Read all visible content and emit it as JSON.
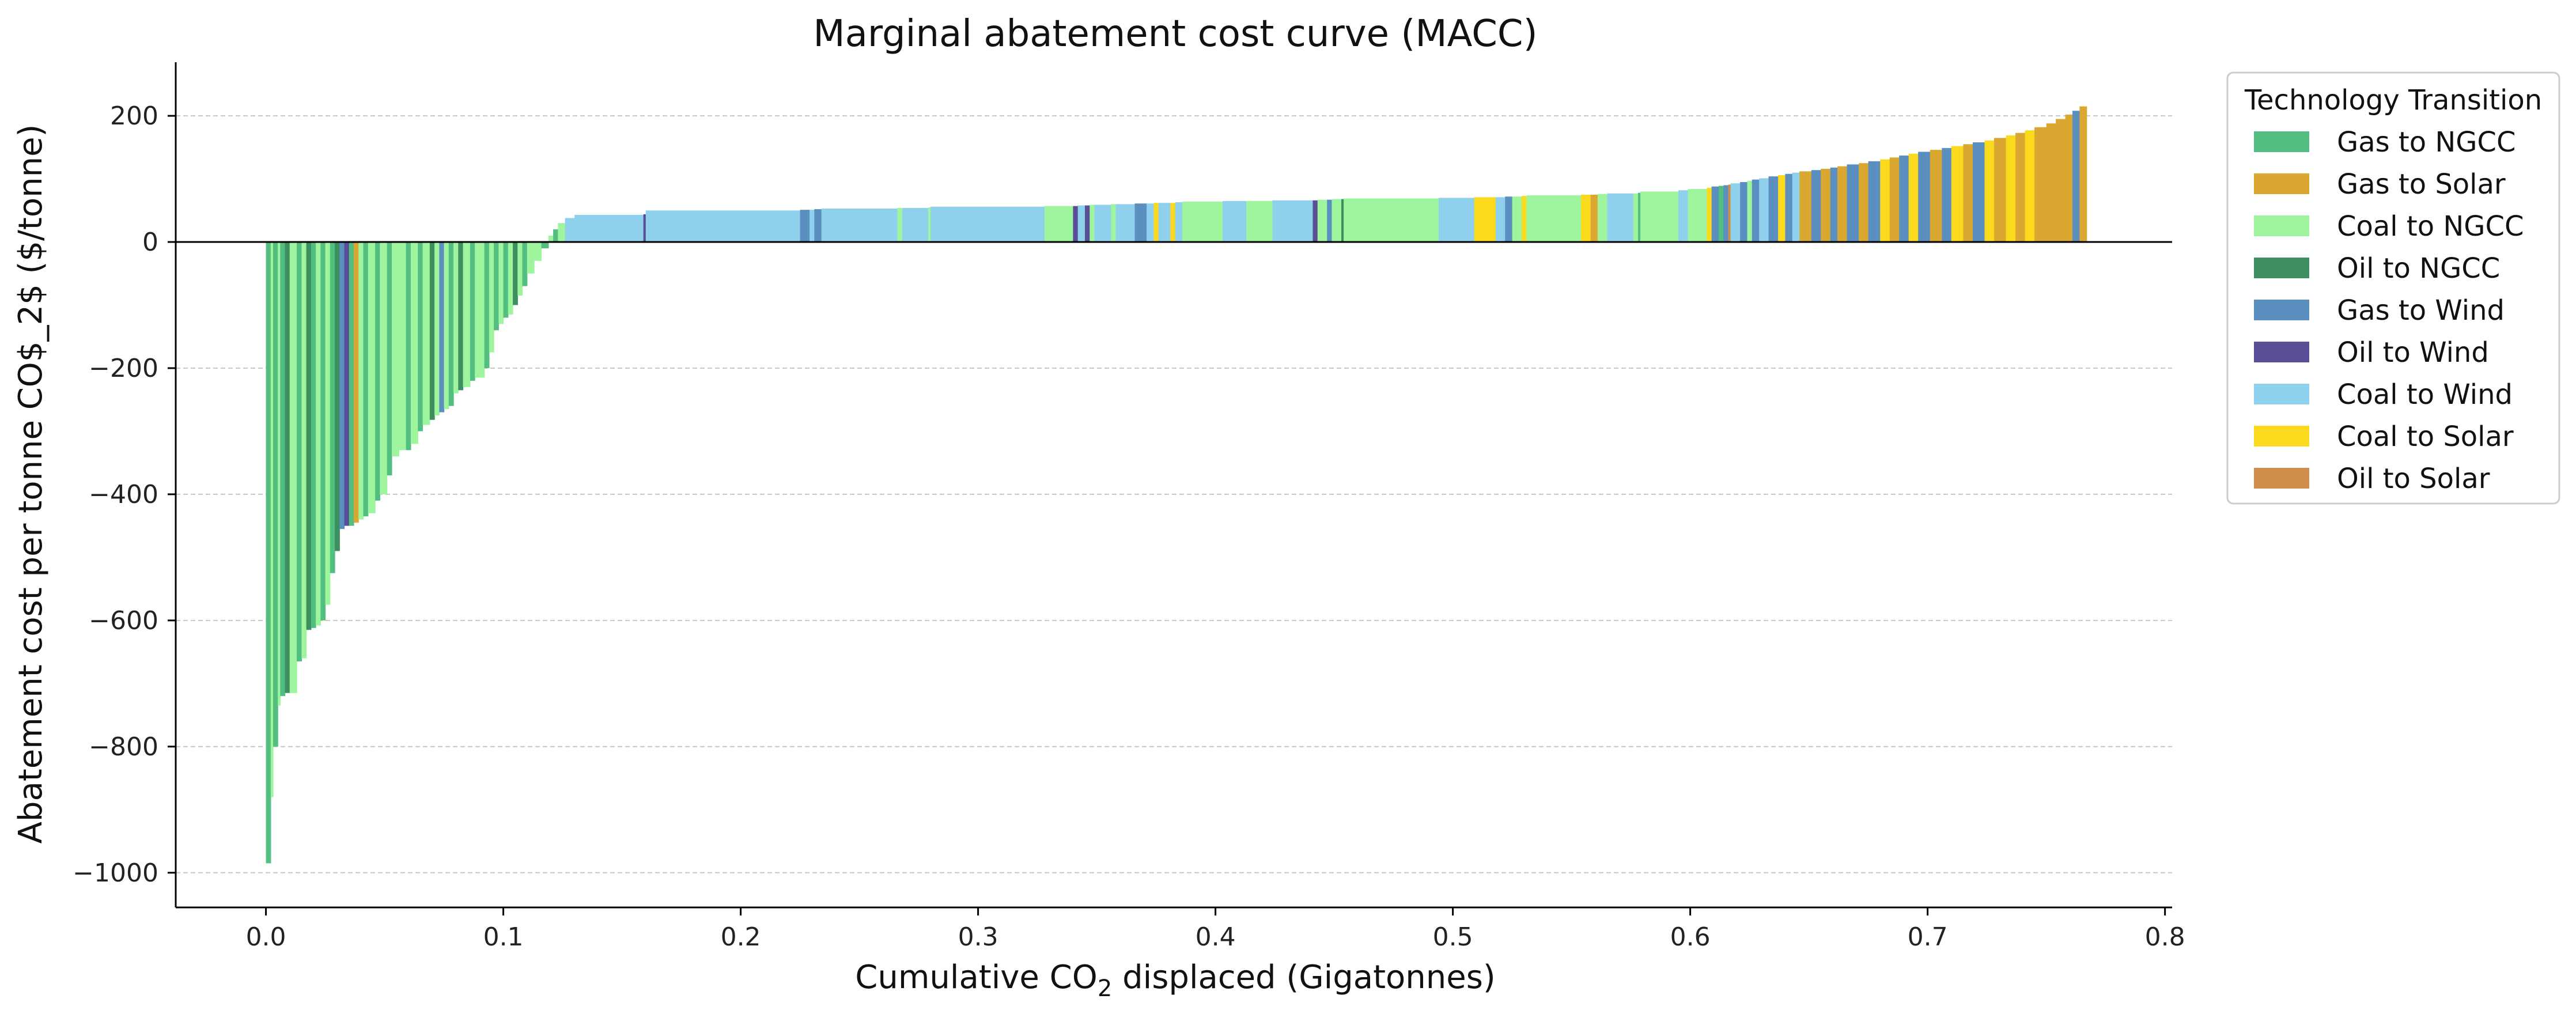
{
  "chart_data": {
    "type": "bar",
    "title": "Marginal abatement cost curve (MACC)",
    "xlabel_prefix": "Cumulative CO",
    "xlabel_sub": "2",
    "xlabel_suffix": " displaced (Gigatonnes)",
    "ylabel": "Abatement cost per tonne CO$_2$ ($/tonne)",
    "xlim": [
      -0.038,
      0.803
    ],
    "ylim": [
      -1055,
      285
    ],
    "x_ticks": [
      0.0,
      0.1,
      0.2,
      0.3,
      0.4,
      0.5,
      0.6,
      0.7,
      0.8
    ],
    "x_tick_labels": [
      "0.0",
      "0.1",
      "0.2",
      "0.3",
      "0.4",
      "0.5",
      "0.6",
      "0.7",
      "0.8"
    ],
    "y_ticks": [
      -1000,
      -800,
      -600,
      -400,
      -200,
      0,
      200
    ],
    "y_tick_labels": [
      "−1000",
      "−800",
      "−600",
      "−400",
      "−200",
      "0",
      "200"
    ],
    "grid": "horizontal-dashed",
    "legend_placement": "outside-right-top",
    "legend": {
      "title": "Technology Transition",
      "entries": [
        {
          "name": "Gas to NGCC",
          "color": "#52BE80"
        },
        {
          "name": "Gas to Solar",
          "color": "#DAA831"
        },
        {
          "name": "Coal to NGCC",
          "color": "#9EF59E"
        },
        {
          "name": "Oil to NGCC",
          "color": "#3E8F5F"
        },
        {
          "name": "Gas to Wind",
          "color": "#5A8FC0"
        },
        {
          "name": "Oil to Wind",
          "color": "#5A4E96"
        },
        {
          "name": "Coal to Wind",
          "color": "#8FD0EC"
        },
        {
          "name": "Coal to Solar",
          "color": "#FBDA1E"
        },
        {
          "name": "Oil to Solar",
          "color": "#D08C4A"
        }
      ]
    },
    "bars": [
      {
        "x0": 0.0,
        "x1": 0.002,
        "value": -985,
        "category": "Gas to NGCC"
      },
      {
        "x0": 0.002,
        "x1": 0.003,
        "value": -880,
        "category": "Coal to NGCC"
      },
      {
        "x0": 0.003,
        "x1": 0.005,
        "value": -800,
        "category": "Gas to NGCC"
      },
      {
        "x0": 0.005,
        "x1": 0.006,
        "value": -735,
        "category": "Coal to NGCC"
      },
      {
        "x0": 0.006,
        "x1": 0.008,
        "value": -720,
        "category": "Gas to NGCC"
      },
      {
        "x0": 0.008,
        "x1": 0.01,
        "value": -715,
        "category": "Oil to NGCC"
      },
      {
        "x0": 0.01,
        "x1": 0.013,
        "value": -715,
        "category": "Coal to NGCC"
      },
      {
        "x0": 0.013,
        "x1": 0.015,
        "value": -665,
        "category": "Gas to NGCC"
      },
      {
        "x0": 0.015,
        "x1": 0.017,
        "value": -660,
        "category": "Coal to NGCC"
      },
      {
        "x0": 0.017,
        "x1": 0.019,
        "value": -615,
        "category": "Oil to NGCC"
      },
      {
        "x0": 0.019,
        "x1": 0.021,
        "value": -612,
        "category": "Gas to NGCC"
      },
      {
        "x0": 0.021,
        "x1": 0.023,
        "value": -608,
        "category": "Coal to NGCC"
      },
      {
        "x0": 0.023,
        "x1": 0.025,
        "value": -600,
        "category": "Gas to NGCC"
      },
      {
        "x0": 0.025,
        "x1": 0.027,
        "value": -575,
        "category": "Coal to NGCC"
      },
      {
        "x0": 0.027,
        "x1": 0.029,
        "value": -525,
        "category": "Gas to NGCC"
      },
      {
        "x0": 0.029,
        "x1": 0.031,
        "value": -490,
        "category": "Oil to NGCC"
      },
      {
        "x0": 0.031,
        "x1": 0.033,
        "value": -455,
        "category": "Gas to Wind"
      },
      {
        "x0": 0.033,
        "x1": 0.035,
        "value": -450,
        "category": "Oil to Wind"
      },
      {
        "x0": 0.035,
        "x1": 0.037,
        "value": -450,
        "category": "Gas to NGCC"
      },
      {
        "x0": 0.037,
        "x1": 0.039,
        "value": -445,
        "category": "Gas to Solar"
      },
      {
        "x0": 0.039,
        "x1": 0.041,
        "value": -440,
        "category": "Coal to NGCC"
      },
      {
        "x0": 0.041,
        "x1": 0.043,
        "value": -435,
        "category": "Gas to NGCC"
      },
      {
        "x0": 0.043,
        "x1": 0.046,
        "value": -430,
        "category": "Coal to NGCC"
      },
      {
        "x0": 0.046,
        "x1": 0.048,
        "value": -410,
        "category": "Gas to NGCC"
      },
      {
        "x0": 0.048,
        "x1": 0.051,
        "value": -400,
        "category": "Coal to NGCC"
      },
      {
        "x0": 0.051,
        "x1": 0.053,
        "value": -370,
        "category": "Gas to NGCC"
      },
      {
        "x0": 0.053,
        "x1": 0.056,
        "value": -340,
        "category": "Coal to NGCC"
      },
      {
        "x0": 0.056,
        "x1": 0.059,
        "value": -330,
        "category": "Coal to NGCC"
      },
      {
        "x0": 0.059,
        "x1": 0.061,
        "value": -330,
        "category": "Gas to NGCC"
      },
      {
        "x0": 0.061,
        "x1": 0.064,
        "value": -320,
        "category": "Coal to NGCC"
      },
      {
        "x0": 0.064,
        "x1": 0.066,
        "value": -300,
        "category": "Gas to NGCC"
      },
      {
        "x0": 0.066,
        "x1": 0.069,
        "value": -290,
        "category": "Coal to NGCC"
      },
      {
        "x0": 0.069,
        "x1": 0.071,
        "value": -282,
        "category": "Oil to NGCC"
      },
      {
        "x0": 0.071,
        "x1": 0.073,
        "value": -275,
        "category": "Coal to NGCC"
      },
      {
        "x0": 0.073,
        "x1": 0.075,
        "value": -270,
        "category": "Gas to Wind"
      },
      {
        "x0": 0.075,
        "x1": 0.077,
        "value": -265,
        "category": "Coal to NGCC"
      },
      {
        "x0": 0.077,
        "x1": 0.079,
        "value": -260,
        "category": "Gas to NGCC"
      },
      {
        "x0": 0.079,
        "x1": 0.081,
        "value": -240,
        "category": "Coal to NGCC"
      },
      {
        "x0": 0.081,
        "x1": 0.083,
        "value": -235,
        "category": "Oil to NGCC"
      },
      {
        "x0": 0.083,
        "x1": 0.086,
        "value": -230,
        "category": "Coal to NGCC"
      },
      {
        "x0": 0.086,
        "x1": 0.088,
        "value": -220,
        "category": "Gas to NGCC"
      },
      {
        "x0": 0.088,
        "x1": 0.092,
        "value": -215,
        "category": "Coal to NGCC"
      },
      {
        "x0": 0.092,
        "x1": 0.094,
        "value": -200,
        "category": "Gas to NGCC"
      },
      {
        "x0": 0.094,
        "x1": 0.096,
        "value": -175,
        "category": "Coal to NGCC"
      },
      {
        "x0": 0.096,
        "x1": 0.098,
        "value": -140,
        "category": "Gas to NGCC"
      },
      {
        "x0": 0.098,
        "x1": 0.1,
        "value": -130,
        "category": "Coal to NGCC"
      },
      {
        "x0": 0.1,
        "x1": 0.102,
        "value": -120,
        "category": "Gas to NGCC"
      },
      {
        "x0": 0.102,
        "x1": 0.104,
        "value": -115,
        "category": "Coal to NGCC"
      },
      {
        "x0": 0.104,
        "x1": 0.106,
        "value": -100,
        "category": "Oil to NGCC"
      },
      {
        "x0": 0.106,
        "x1": 0.108,
        "value": -85,
        "category": "Coal to NGCC"
      },
      {
        "x0": 0.108,
        "x1": 0.11,
        "value": -70,
        "category": "Gas to NGCC"
      },
      {
        "x0": 0.11,
        "x1": 0.113,
        "value": -50,
        "category": "Coal to NGCC"
      },
      {
        "x0": 0.113,
        "x1": 0.116,
        "value": -30,
        "category": "Coal to NGCC"
      },
      {
        "x0": 0.116,
        "x1": 0.119,
        "value": -10,
        "category": "Gas to NGCC"
      },
      {
        "x0": 0.119,
        "x1": 0.121,
        "value": 10,
        "category": "Coal to NGCC"
      },
      {
        "x0": 0.121,
        "x1": 0.123,
        "value": 20,
        "category": "Gas to NGCC"
      },
      {
        "x0": 0.123,
        "x1": 0.126,
        "value": 30,
        "category": "Coal to NGCC"
      },
      {
        "x0": 0.126,
        "x1": 0.13,
        "value": 38,
        "category": "Coal to Wind"
      },
      {
        "x0": 0.13,
        "x1": 0.159,
        "value": 43,
        "category": "Coal to Wind"
      },
      {
        "x0": 0.159,
        "x1": 0.16,
        "value": 44,
        "category": "Oil to Wind"
      },
      {
        "x0": 0.16,
        "x1": 0.225,
        "value": 50,
        "category": "Coal to Wind"
      },
      {
        "x0": 0.225,
        "x1": 0.229,
        "value": 51,
        "category": "Gas to Wind"
      },
      {
        "x0": 0.229,
        "x1": 0.231,
        "value": 51,
        "category": "Coal to Wind"
      },
      {
        "x0": 0.231,
        "x1": 0.234,
        "value": 52,
        "category": "Gas to Wind"
      },
      {
        "x0": 0.234,
        "x1": 0.266,
        "value": 53,
        "category": "Coal to Wind"
      },
      {
        "x0": 0.266,
        "x1": 0.268,
        "value": 54,
        "category": "Coal to NGCC"
      },
      {
        "x0": 0.268,
        "x1": 0.279,
        "value": 54,
        "category": "Coal to Wind"
      },
      {
        "x0": 0.279,
        "x1": 0.28,
        "value": 55,
        "category": "Coal to NGCC"
      },
      {
        "x0": 0.28,
        "x1": 0.328,
        "value": 56,
        "category": "Coal to Wind"
      },
      {
        "x0": 0.328,
        "x1": 0.34,
        "value": 57,
        "category": "Coal to NGCC"
      },
      {
        "x0": 0.34,
        "x1": 0.342,
        "value": 57,
        "category": "Oil to Wind"
      },
      {
        "x0": 0.342,
        "x1": 0.345,
        "value": 58,
        "category": "Coal to Wind"
      },
      {
        "x0": 0.345,
        "x1": 0.347,
        "value": 58,
        "category": "Oil to Wind"
      },
      {
        "x0": 0.347,
        "x1": 0.349,
        "value": 59,
        "category": "Coal to NGCC"
      },
      {
        "x0": 0.349,
        "x1": 0.356,
        "value": 59,
        "category": "Coal to Wind"
      },
      {
        "x0": 0.356,
        "x1": 0.358,
        "value": 60,
        "category": "Coal to NGCC"
      },
      {
        "x0": 0.358,
        "x1": 0.366,
        "value": 60,
        "category": "Coal to Wind"
      },
      {
        "x0": 0.366,
        "x1": 0.371,
        "value": 61,
        "category": "Gas to Wind"
      },
      {
        "x0": 0.371,
        "x1": 0.374,
        "value": 61,
        "category": "Coal to Wind"
      },
      {
        "x0": 0.374,
        "x1": 0.376,
        "value": 62,
        "category": "Coal to Solar"
      },
      {
        "x0": 0.376,
        "x1": 0.381,
        "value": 62,
        "category": "Coal to Wind"
      },
      {
        "x0": 0.381,
        "x1": 0.383,
        "value": 62,
        "category": "Coal to Solar"
      },
      {
        "x0": 0.383,
        "x1": 0.386,
        "value": 63,
        "category": "Coal to Wind"
      },
      {
        "x0": 0.386,
        "x1": 0.403,
        "value": 64,
        "category": "Coal to NGCC"
      },
      {
        "x0": 0.403,
        "x1": 0.413,
        "value": 65,
        "category": "Coal to Wind"
      },
      {
        "x0": 0.413,
        "x1": 0.424,
        "value": 65,
        "category": "Coal to NGCC"
      },
      {
        "x0": 0.424,
        "x1": 0.441,
        "value": 66,
        "category": "Coal to Wind"
      },
      {
        "x0": 0.441,
        "x1": 0.443,
        "value": 66,
        "category": "Oil to Wind"
      },
      {
        "x0": 0.443,
        "x1": 0.447,
        "value": 67,
        "category": "Coal to NGCC"
      },
      {
        "x0": 0.447,
        "x1": 0.449,
        "value": 67,
        "category": "Gas to Wind"
      },
      {
        "x0": 0.449,
        "x1": 0.453,
        "value": 68,
        "category": "Coal to NGCC"
      },
      {
        "x0": 0.453,
        "x1": 0.454,
        "value": 68,
        "category": "Oil to NGCC"
      },
      {
        "x0": 0.454,
        "x1": 0.494,
        "value": 69,
        "category": "Coal to NGCC"
      },
      {
        "x0": 0.494,
        "x1": 0.509,
        "value": 70,
        "category": "Coal to Wind"
      },
      {
        "x0": 0.509,
        "x1": 0.518,
        "value": 71,
        "category": "Coal to Solar"
      },
      {
        "x0": 0.518,
        "x1": 0.522,
        "value": 71,
        "category": "Coal to Wind"
      },
      {
        "x0": 0.522,
        "x1": 0.525,
        "value": 72,
        "category": "Gas to Wind"
      },
      {
        "x0": 0.525,
        "x1": 0.529,
        "value": 72,
        "category": "Coal to NGCC"
      },
      {
        "x0": 0.529,
        "x1": 0.531,
        "value": 73,
        "category": "Coal to Solar"
      },
      {
        "x0": 0.531,
        "x1": 0.554,
        "value": 74,
        "category": "Coal to NGCC"
      },
      {
        "x0": 0.554,
        "x1": 0.558,
        "value": 75,
        "category": "Coal to Solar"
      },
      {
        "x0": 0.558,
        "x1": 0.561,
        "value": 75,
        "category": "Gas to Solar"
      },
      {
        "x0": 0.561,
        "x1": 0.565,
        "value": 76,
        "category": "Coal to NGCC"
      },
      {
        "x0": 0.565,
        "x1": 0.576,
        "value": 77,
        "category": "Coal to Wind"
      },
      {
        "x0": 0.576,
        "x1": 0.578,
        "value": 77,
        "category": "Coal to NGCC"
      },
      {
        "x0": 0.578,
        "x1": 0.579,
        "value": 78,
        "category": "Gas to NGCC"
      },
      {
        "x0": 0.579,
        "x1": 0.595,
        "value": 80,
        "category": "Coal to NGCC"
      },
      {
        "x0": 0.595,
        "x1": 0.599,
        "value": 82,
        "category": "Coal to Wind"
      },
      {
        "x0": 0.599,
        "x1": 0.607,
        "value": 84,
        "category": "Coal to NGCC"
      },
      {
        "x0": 0.607,
        "x1": 0.609,
        "value": 86,
        "category": "Coal to Solar"
      },
      {
        "x0": 0.609,
        "x1": 0.612,
        "value": 88,
        "category": "Gas to Wind"
      },
      {
        "x0": 0.612,
        "x1": 0.614,
        "value": 89,
        "category": "Gas to NGCC"
      },
      {
        "x0": 0.614,
        "x1": 0.616,
        "value": 90,
        "category": "Gas to Wind"
      },
      {
        "x0": 0.616,
        "x1": 0.617,
        "value": 91,
        "category": "Oil to Solar"
      },
      {
        "x0": 0.617,
        "x1": 0.621,
        "value": 93,
        "category": "Coal to Wind"
      },
      {
        "x0": 0.621,
        "x1": 0.624,
        "value": 95,
        "category": "Gas to Wind"
      },
      {
        "x0": 0.624,
        "x1": 0.626,
        "value": 97,
        "category": "Coal to NGCC"
      },
      {
        "x0": 0.626,
        "x1": 0.629,
        "value": 99,
        "category": "Gas to Wind"
      },
      {
        "x0": 0.629,
        "x1": 0.633,
        "value": 101,
        "category": "Coal to Wind"
      },
      {
        "x0": 0.633,
        "x1": 0.637,
        "value": 104,
        "category": "Gas to Wind"
      },
      {
        "x0": 0.637,
        "x1": 0.64,
        "value": 106,
        "category": "Coal to Solar"
      },
      {
        "x0": 0.64,
        "x1": 0.643,
        "value": 108,
        "category": "Gas to Wind"
      },
      {
        "x0": 0.643,
        "x1": 0.646,
        "value": 110,
        "category": "Coal to Wind"
      },
      {
        "x0": 0.646,
        "x1": 0.651,
        "value": 112,
        "category": "Gas to Solar"
      },
      {
        "x0": 0.651,
        "x1": 0.655,
        "value": 114,
        "category": "Gas to Wind"
      },
      {
        "x0": 0.655,
        "x1": 0.659,
        "value": 116,
        "category": "Gas to Solar"
      },
      {
        "x0": 0.659,
        "x1": 0.662,
        "value": 118,
        "category": "Gas to Wind"
      },
      {
        "x0": 0.662,
        "x1": 0.666,
        "value": 120,
        "category": "Gas to Solar"
      },
      {
        "x0": 0.666,
        "x1": 0.671,
        "value": 123,
        "category": "Gas to Wind"
      },
      {
        "x0": 0.671,
        "x1": 0.675,
        "value": 125,
        "category": "Gas to Solar"
      },
      {
        "x0": 0.675,
        "x1": 0.68,
        "value": 128,
        "category": "Gas to Wind"
      },
      {
        "x0": 0.68,
        "x1": 0.684,
        "value": 131,
        "category": "Coal to Solar"
      },
      {
        "x0": 0.684,
        "x1": 0.688,
        "value": 134,
        "category": "Gas to Solar"
      },
      {
        "x0": 0.688,
        "x1": 0.692,
        "value": 137,
        "category": "Gas to Wind"
      },
      {
        "x0": 0.692,
        "x1": 0.696,
        "value": 140,
        "category": "Coal to Solar"
      },
      {
        "x0": 0.696,
        "x1": 0.701,
        "value": 143,
        "category": "Gas to Wind"
      },
      {
        "x0": 0.701,
        "x1": 0.706,
        "value": 146,
        "category": "Gas to Solar"
      },
      {
        "x0": 0.706,
        "x1": 0.71,
        "value": 149,
        "category": "Gas to Wind"
      },
      {
        "x0": 0.71,
        "x1": 0.715,
        "value": 152,
        "category": "Coal to Solar"
      },
      {
        "x0": 0.715,
        "x1": 0.719,
        "value": 155,
        "category": "Gas to Solar"
      },
      {
        "x0": 0.719,
        "x1": 0.724,
        "value": 158,
        "category": "Gas to Wind"
      },
      {
        "x0": 0.724,
        "x1": 0.728,
        "value": 161,
        "category": "Coal to Solar"
      },
      {
        "x0": 0.728,
        "x1": 0.733,
        "value": 165,
        "category": "Gas to Solar"
      },
      {
        "x0": 0.733,
        "x1": 0.737,
        "value": 169,
        "category": "Coal to Solar"
      },
      {
        "x0": 0.737,
        "x1": 0.741,
        "value": 173,
        "category": "Gas to Solar"
      },
      {
        "x0": 0.741,
        "x1": 0.745,
        "value": 177,
        "category": "Coal to Solar"
      },
      {
        "x0": 0.745,
        "x1": 0.75,
        "value": 182,
        "category": "Gas to Solar"
      },
      {
        "x0": 0.75,
        "x1": 0.754,
        "value": 188,
        "category": "Gas to Solar"
      },
      {
        "x0": 0.754,
        "x1": 0.758,
        "value": 195,
        "category": "Gas to Solar"
      },
      {
        "x0": 0.758,
        "x1": 0.761,
        "value": 202,
        "category": "Gas to Solar"
      },
      {
        "x0": 0.761,
        "x1": 0.764,
        "value": 208,
        "category": "Gas to Wind"
      },
      {
        "x0": 0.764,
        "x1": 0.767,
        "value": 215,
        "category": "Gas to Solar"
      }
    ]
  }
}
